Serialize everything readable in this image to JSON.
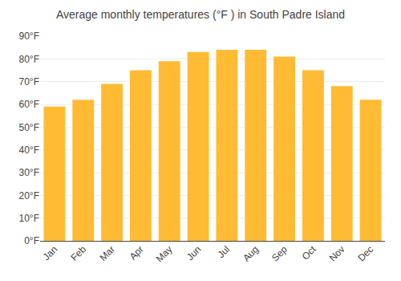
{
  "chart_data": {
    "type": "bar",
    "title": "Average monthly temperatures (°F ) in South Padre Island",
    "categories": [
      "Jan",
      "Feb",
      "Mar",
      "Apr",
      "May",
      "Jun",
      "Jul",
      "Aug",
      "Sep",
      "Oct",
      "Nov",
      "Dec"
    ],
    "values": [
      59,
      62,
      69,
      75,
      79,
      83,
      84,
      84,
      81,
      75,
      68,
      62
    ],
    "color": "#FFBB33",
    "ylim": [
      0,
      90
    ],
    "yticks": [
      {
        "value": 0,
        "label": "0°F"
      },
      {
        "value": 10,
        "label": "10°F"
      },
      {
        "value": 20,
        "label": "20°F"
      },
      {
        "value": 30,
        "label": "30°F"
      },
      {
        "value": 40,
        "label": "40°F"
      },
      {
        "value": 50,
        "label": "50°F"
      },
      {
        "value": 60,
        "label": "60°F"
      },
      {
        "value": 70,
        "label": "70°F"
      },
      {
        "value": 80,
        "label": "80°F"
      },
      {
        "value": 90,
        "label": "90°F"
      }
    ],
    "grid": true
  }
}
